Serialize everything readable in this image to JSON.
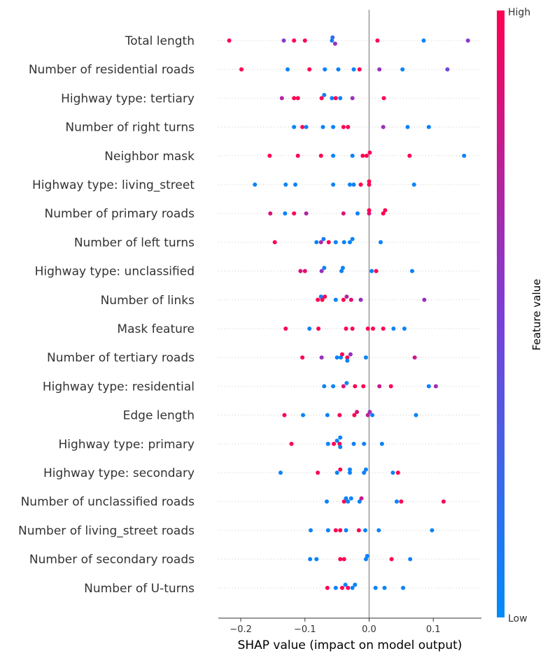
{
  "chart_data": {
    "type": "scatter",
    "subtype": "shap-beeswarm",
    "xlabel": "SHAP value (impact on model output)",
    "xlim": [
      -0.235,
      0.175
    ],
    "xticks": [
      -0.2,
      -0.1,
      0.0,
      0.1
    ],
    "xtick_labels": [
      "−0.2",
      "−0.1",
      "0.0",
      "0.1"
    ],
    "colorbar": {
      "title": "Feature value",
      "high_label": "High",
      "low_label": "Low",
      "high_color": "#ff0052",
      "low_color": "#008bfb"
    },
    "features": [
      {
        "name": "Total length",
        "points": [
          [
            -0.218,
            1.0
          ],
          [
            -0.133,
            0.55
          ],
          [
            -0.117,
            1.0
          ],
          [
            -0.1,
            1.0
          ],
          [
            -0.058,
            0.1
          ],
          [
            -0.057,
            0.2
          ],
          [
            -0.053,
            0.6
          ],
          [
            0.013,
            1.0
          ],
          [
            0.085,
            0.05
          ],
          [
            0.154,
            0.55
          ]
        ]
      },
      {
        "name": "Number of residential roads",
        "points": [
          [
            -0.199,
            1.0
          ],
          [
            -0.127,
            0.05
          ],
          [
            -0.093,
            1.0
          ],
          [
            -0.069,
            0.05
          ],
          [
            -0.048,
            0.05
          ],
          [
            -0.024,
            0.05
          ],
          [
            -0.015,
            1.0
          ],
          [
            0.016,
            0.6
          ],
          [
            0.052,
            0.05
          ],
          [
            0.122,
            0.45
          ]
        ]
      },
      {
        "name": "Highway type: tertiary",
        "points": [
          [
            -0.136,
            0.7
          ],
          [
            -0.117,
            1.0
          ],
          [
            -0.111,
            1.0
          ],
          [
            -0.074,
            1.0
          ],
          [
            -0.07,
            0.1
          ],
          [
            -0.058,
            0.05
          ],
          [
            -0.052,
            1.0
          ],
          [
            -0.045,
            0.05
          ],
          [
            -0.026,
            0.6
          ],
          [
            0.023,
            1.0
          ]
        ]
      },
      {
        "name": "Number of right turns",
        "points": [
          [
            -0.117,
            0.05
          ],
          [
            -0.104,
            1.0
          ],
          [
            -0.098,
            0.05
          ],
          [
            -0.072,
            0.05
          ],
          [
            -0.056,
            0.05
          ],
          [
            -0.04,
            1.0
          ],
          [
            -0.033,
            1.0
          ],
          [
            0.022,
            0.6
          ],
          [
            0.06,
            0.05
          ],
          [
            0.093,
            0.05
          ]
        ]
      },
      {
        "name": "Neighbor mask",
        "points": [
          [
            -0.155,
            1.0
          ],
          [
            -0.111,
            1.0
          ],
          [
            -0.075,
            1.0
          ],
          [
            -0.056,
            0.05
          ],
          [
            -0.026,
            0.05
          ],
          [
            -0.01,
            1.0
          ],
          [
            -0.004,
            1.0
          ],
          [
            0.001,
            1.0
          ],
          [
            0.063,
            1.0
          ],
          [
            0.148,
            0.05
          ]
        ]
      },
      {
        "name": "Highway type: living_street",
        "points": [
          [
            -0.178,
            0.05
          ],
          [
            -0.13,
            0.05
          ],
          [
            -0.115,
            0.05
          ],
          [
            -0.056,
            0.05
          ],
          [
            -0.03,
            0.05
          ],
          [
            -0.024,
            0.05
          ],
          [
            -0.013,
            1.0
          ],
          [
            0.0,
            1.0
          ],
          [
            0.0,
            1.0
          ],
          [
            0.07,
            0.05
          ]
        ]
      },
      {
        "name": "Number of primary roads",
        "points": [
          [
            -0.154,
            0.85
          ],
          [
            -0.131,
            0.05
          ],
          [
            -0.117,
            1.0
          ],
          [
            -0.098,
            0.7
          ],
          [
            -0.04,
            0.85
          ],
          [
            -0.018,
            0.05
          ],
          [
            0.0,
            0.85
          ],
          [
            0.0,
            1.0
          ],
          [
            0.022,
            1.0
          ],
          [
            0.025,
            1.0
          ]
        ]
      },
      {
        "name": "Number of left turns",
        "points": [
          [
            -0.147,
            1.0
          ],
          [
            -0.082,
            0.05
          ],
          [
            -0.075,
            0.7
          ],
          [
            -0.071,
            0.1
          ],
          [
            -0.063,
            1.0
          ],
          [
            -0.052,
            0.05
          ],
          [
            -0.039,
            0.05
          ],
          [
            -0.03,
            0.05
          ],
          [
            -0.026,
            0.05
          ],
          [
            0.018,
            0.05
          ]
        ]
      },
      {
        "name": "Highway type: unclassified",
        "points": [
          [
            -0.107,
            0.85
          ],
          [
            -0.1,
            0.9
          ],
          [
            -0.074,
            0.6
          ],
          [
            -0.07,
            0.05
          ],
          [
            -0.043,
            0.05
          ],
          [
            -0.041,
            0.05
          ],
          [
            0.004,
            0.05
          ],
          [
            0.011,
            1.0
          ],
          [
            0.067,
            0.05
          ]
        ]
      },
      {
        "name": "Number of links",
        "points": [
          [
            -0.08,
            1.0
          ],
          [
            -0.075,
            0.05
          ],
          [
            -0.073,
            1.0
          ],
          [
            -0.069,
            1.0
          ],
          [
            -0.052,
            0.05
          ],
          [
            -0.04,
            1.0
          ],
          [
            -0.035,
            0.7
          ],
          [
            -0.028,
            0.9
          ],
          [
            -0.013,
            0.6
          ],
          [
            0.086,
            0.6
          ]
        ]
      },
      {
        "name": "Mask feature",
        "points": [
          [
            -0.13,
            1.0
          ],
          [
            -0.093,
            0.05
          ],
          [
            -0.079,
            1.0
          ],
          [
            -0.036,
            1.0
          ],
          [
            -0.026,
            1.0
          ],
          [
            -0.002,
            1.0
          ],
          [
            0.006,
            1.0
          ],
          [
            0.022,
            1.0
          ],
          [
            0.038,
            0.05
          ],
          [
            0.055,
            0.05
          ]
        ]
      },
      {
        "name": "Number of tertiary roads",
        "points": [
          [
            -0.104,
            1.0
          ],
          [
            -0.074,
            0.6
          ],
          [
            -0.05,
            0.05
          ],
          [
            -0.044,
            0.05
          ],
          [
            -0.042,
            1.0
          ],
          [
            -0.034,
            1.0
          ],
          [
            -0.029,
            0.6
          ],
          [
            -0.034,
            0.05
          ],
          [
            -0.005,
            0.05
          ],
          [
            0.071,
            0.8
          ]
        ]
      },
      {
        "name": "Highway type: residential",
        "points": [
          [
            -0.07,
            0.05
          ],
          [
            -0.056,
            0.05
          ],
          [
            -0.04,
            0.85
          ],
          [
            -0.035,
            0.05
          ],
          [
            -0.022,
            1.0
          ],
          [
            -0.009,
            1.0
          ],
          [
            0.016,
            0.8
          ],
          [
            0.034,
            1.0
          ],
          [
            0.093,
            0.05
          ],
          [
            0.104,
            0.65
          ]
        ]
      },
      {
        "name": "Edge length",
        "points": [
          [
            -0.132,
            1.0
          ],
          [
            -0.103,
            0.05
          ],
          [
            -0.065,
            0.05
          ],
          [
            -0.046,
            1.0
          ],
          [
            -0.023,
            1.0
          ],
          [
            -0.019,
            0.85
          ],
          [
            -0.002,
            0.75
          ],
          [
            0.001,
            0.65
          ],
          [
            0.005,
            0.05
          ],
          [
            0.073,
            0.05
          ]
        ]
      },
      {
        "name": "Highway type: primary",
        "points": [
          [
            -0.121,
            1.0
          ],
          [
            -0.064,
            0.05
          ],
          [
            -0.055,
            1.0
          ],
          [
            -0.05,
            0.05
          ],
          [
            -0.046,
            1.0
          ],
          [
            -0.045,
            0.05
          ],
          [
            -0.045,
            0.05
          ],
          [
            -0.024,
            0.05
          ],
          [
            -0.008,
            0.05
          ],
          [
            0.02,
            0.05
          ]
        ]
      },
      {
        "name": "Highway type: secondary",
        "points": [
          [
            -0.138,
            0.05
          ],
          [
            -0.08,
            1.0
          ],
          [
            -0.05,
            0.05
          ],
          [
            -0.045,
            1.0
          ],
          [
            -0.03,
            0.05
          ],
          [
            -0.03,
            0.05
          ],
          [
            -0.008,
            0.05
          ],
          [
            -0.005,
            0.05
          ],
          [
            0.037,
            0.05
          ],
          [
            0.045,
            1.0
          ]
        ]
      },
      {
        "name": "Number of unclassified roads",
        "points": [
          [
            -0.066,
            0.05
          ],
          [
            -0.039,
            1.0
          ],
          [
            -0.036,
            0.05
          ],
          [
            -0.033,
            0.05
          ],
          [
            -0.028,
            0.05
          ],
          [
            -0.015,
            0.05
          ],
          [
            -0.012,
            0.8
          ],
          [
            0.043,
            0.05
          ],
          [
            0.05,
            1.0
          ],
          [
            0.116,
            1.0
          ]
        ]
      },
      {
        "name": "Number of living_street roads",
        "points": [
          [
            -0.091,
            0.05
          ],
          [
            -0.064,
            0.05
          ],
          [
            -0.052,
            1.0
          ],
          [
            -0.045,
            1.0
          ],
          [
            -0.036,
            0.05
          ],
          [
            -0.016,
            1.0
          ],
          [
            -0.006,
            0.05
          ],
          [
            0.015,
            0.05
          ],
          [
            0.098,
            0.05
          ]
        ]
      },
      {
        "name": "Number of secondary roads",
        "points": [
          [
            -0.092,
            0.05
          ],
          [
            -0.082,
            0.05
          ],
          [
            -0.045,
            1.0
          ],
          [
            -0.039,
            1.0
          ],
          [
            -0.005,
            0.05
          ],
          [
            -0.003,
            0.05
          ],
          [
            0.035,
            1.0
          ],
          [
            0.064,
            0.05
          ]
        ]
      },
      {
        "name": "Number of U-turns",
        "points": [
          [
            -0.065,
            1.0
          ],
          [
            -0.052,
            0.05
          ],
          [
            -0.042,
            1.0
          ],
          [
            -0.037,
            0.05
          ],
          [
            -0.033,
            1.0
          ],
          [
            -0.026,
            0.05
          ],
          [
            -0.022,
            0.05
          ],
          [
            0.01,
            0.05
          ],
          [
            0.024,
            0.05
          ],
          [
            0.053,
            0.05
          ]
        ]
      }
    ]
  }
}
